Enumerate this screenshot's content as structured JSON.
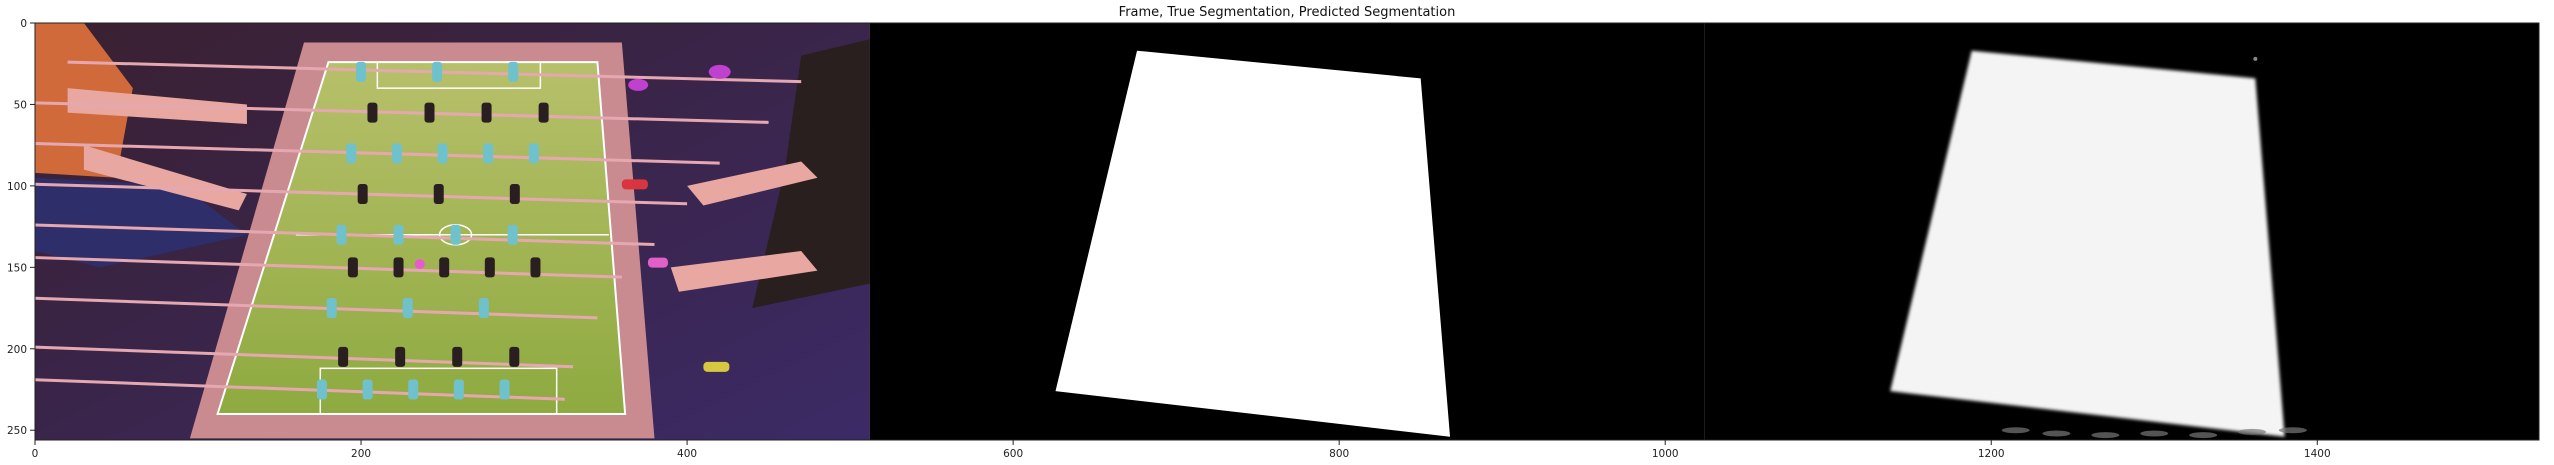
{
  "chart_data": {
    "type": "image",
    "title": "Frame, True Segmentation, Predicted Segmentation",
    "xlabel": "",
    "ylabel": "",
    "xlim": [
      0,
      1536
    ],
    "ylim": [
      256,
      0
    ],
    "x_ticks": [
      0,
      200,
      400,
      600,
      800,
      1000,
      1200,
      1400
    ],
    "y_ticks": [
      0,
      50,
      100,
      150,
      200,
      250
    ],
    "panels": [
      {
        "name": "Frame",
        "x_range": [
          0,
          512
        ]
      },
      {
        "name": "True Segmentation",
        "x_range": [
          512,
          1024
        ]
      },
      {
        "name": "Predicted Segmentation",
        "x_range": [
          1024,
          1536
        ]
      }
    ],
    "true_mask_polygon": [
      [
        676,
        17
      ],
      [
        850,
        34
      ],
      [
        868,
        254
      ],
      [
        626,
        226
      ]
    ],
    "pred_mask_polygon": [
      [
        1188,
        17
      ],
      [
        1362,
        34
      ],
      [
        1380,
        254
      ],
      [
        1138,
        226
      ]
    ],
    "grid": false,
    "legend": "none",
    "colors": {
      "frame_dark": "#2a1a2a",
      "table_wood": "#d89aa0",
      "field_green": "#9fb04a",
      "mask": "#ffffff",
      "background": "#000000"
    }
  }
}
